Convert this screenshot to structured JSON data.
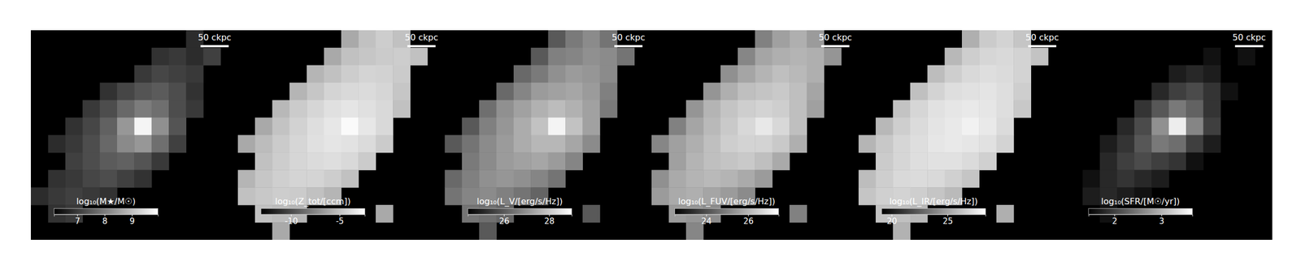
{
  "chart_data": [
    {
      "type": "heatmap",
      "scale_bar": "50 ckpc",
      "colorbar_label": "log₁₀(M★/M☉)",
      "colorbar_range": [
        6.15,
        9.95
      ],
      "colorbar_ticks": [
        7,
        8,
        9
      ],
      "cells": [
        [
          null,
          null,
          null,
          null,
          null,
          null,
          null,
          null,
          null,
          6.8,
          null,
          null
        ],
        [
          null,
          null,
          null,
          null,
          null,
          null,
          null,
          6.9,
          7.0,
          6.8,
          7.1,
          null
        ],
        [
          null,
          null,
          null,
          null,
          null,
          null,
          7.0,
          7.2,
          7.1,
          7.0,
          null,
          null
        ],
        [
          null,
          null,
          null,
          null,
          6.9,
          7.2,
          7.4,
          7.5,
          7.3,
          6.9,
          null,
          null
        ],
        [
          null,
          null,
          null,
          7.0,
          7.3,
          7.7,
          8.0,
          7.8,
          7.3,
          7.0,
          null,
          null
        ],
        [
          null,
          null,
          6.9,
          7.2,
          7.6,
          8.4,
          9.8,
          8.3,
          7.4,
          null,
          null,
          null
        ],
        [
          null,
          6.8,
          7.0,
          7.3,
          7.7,
          8.2,
          8.4,
          7.8,
          7.1,
          null,
          null,
          null
        ],
        [
          null,
          null,
          7.1,
          7.3,
          7.5,
          7.6,
          7.4,
          7.0,
          null,
          null,
          null,
          null
        ],
        [
          null,
          6.9,
          7.0,
          7.2,
          7.3,
          7.1,
          6.9,
          null,
          null,
          null,
          null,
          null
        ],
        [
          6.8,
          7.0,
          7.1,
          7.0,
          6.9,
          null,
          null,
          null,
          null,
          null,
          null,
          null
        ],
        [
          null,
          6.9,
          7.0,
          null,
          null,
          null,
          null,
          null,
          null,
          null,
          null,
          null
        ],
        [
          null,
          null,
          null,
          null,
          null,
          null,
          null,
          null,
          null,
          null,
          null,
          null
        ]
      ]
    },
    {
      "type": "heatmap",
      "scale_bar": "50 ckpc",
      "colorbar_label": "log₁₀(Z_tot/[ccm])",
      "colorbar_range": [
        -13.1,
        -2.4
      ],
      "colorbar_ticks": [
        -10,
        -5
      ],
      "cells": [
        [
          null,
          null,
          null,
          null,
          null,
          null,
          -6,
          -5,
          -4.5,
          -5,
          null,
          null
        ],
        [
          null,
          null,
          null,
          null,
          null,
          -6,
          -5,
          -4.8,
          -4.6,
          -4.5,
          -5,
          null
        ],
        [
          null,
          null,
          null,
          null,
          -5.5,
          -5,
          -4.5,
          -4.2,
          -4.3,
          -4.6,
          null,
          null
        ],
        [
          null,
          null,
          null,
          -5.5,
          -4.8,
          -4.2,
          -4.0,
          -3.9,
          -4.1,
          -4.8,
          null,
          null
        ],
        [
          null,
          null,
          -5.4,
          -4.6,
          -4.1,
          -3.7,
          -3.5,
          -3.7,
          -4.0,
          -5,
          null,
          null
        ],
        [
          null,
          -6,
          -4.9,
          -4.3,
          -3.8,
          -3.4,
          -2.6,
          -3.4,
          -4,
          null,
          null,
          null
        ],
        [
          -6,
          -5.2,
          -4.6,
          -4.1,
          -3.7,
          -3.5,
          -3.6,
          -3.9,
          -4.6,
          null,
          null,
          null
        ],
        [
          null,
          -5,
          -4.5,
          -4.1,
          -3.9,
          -3.8,
          -4.0,
          -4.6,
          null,
          null,
          null,
          null
        ],
        [
          -5.5,
          -4.8,
          -4.4,
          -4.2,
          -4.2,
          -4.5,
          -5,
          null,
          null,
          null,
          null,
          null
        ],
        [
          -5,
          -4.7,
          -4.5,
          -4.6,
          -5,
          -5.5,
          null,
          null,
          null,
          null,
          null,
          null
        ],
        [
          null,
          -5,
          -5.2,
          -5.5,
          null,
          null,
          null,
          null,
          -6,
          null,
          null,
          null
        ],
        [
          null,
          null,
          -6,
          null,
          null,
          null,
          null,
          null,
          null,
          null,
          null,
          null
        ]
      ]
    },
    {
      "type": "heatmap",
      "scale_bar": "50 ckpc",
      "colorbar_label": "log₁₀(L_V/[erg/s/Hz])",
      "colorbar_range": [
        24.4,
        29.0
      ],
      "colorbar_ticks": [
        26,
        28
      ],
      "cells": [
        [
          null,
          null,
          null,
          null,
          null,
          null,
          26.0,
          26.6,
          26.9,
          26.5,
          null,
          null
        ],
        [
          null,
          null,
          null,
          null,
          null,
          26.0,
          26.7,
          26.8,
          27.0,
          26.9,
          26.5,
          null
        ],
        [
          null,
          null,
          null,
          null,
          26.3,
          26.6,
          27.0,
          27.2,
          27.1,
          26.9,
          null,
          null
        ],
        [
          null,
          null,
          null,
          26.3,
          26.8,
          27.2,
          27.3,
          27.4,
          27.2,
          26.7,
          null,
          null
        ],
        [
          null,
          null,
          26.4,
          27.0,
          27.3,
          27.6,
          27.8,
          27.6,
          27.3,
          26.6,
          null,
          null
        ],
        [
          null,
          26.0,
          26.7,
          27.1,
          27.5,
          27.9,
          28.8,
          27.9,
          27.3,
          null,
          null,
          null
        ],
        [
          26.0,
          26.5,
          26.9,
          27.2,
          27.5,
          27.7,
          27.7,
          27.4,
          26.9,
          null,
          null,
          null
        ],
        [
          null,
          26.6,
          26.9,
          27.2,
          27.3,
          27.4,
          27.2,
          26.8,
          null,
          null,
          null,
          null
        ],
        [
          26.3,
          26.7,
          27.0,
          27.1,
          27.0,
          26.8,
          26.5,
          null,
          null,
          null,
          null,
          null
        ],
        [
          26.5,
          26.8,
          26.9,
          26.7,
          26.5,
          26.2,
          null,
          null,
          null,
          null,
          null,
          null
        ],
        [
          null,
          26.5,
          26.4,
          26.2,
          null,
          null,
          null,
          null,
          26.0,
          null,
          null,
          null
        ],
        [
          null,
          null,
          26.0,
          null,
          null,
          null,
          null,
          null,
          null,
          null,
          null,
          null
        ]
      ]
    },
    {
      "type": "heatmap",
      "scale_bar": "50 ckpc",
      "colorbar_label": "log₁₀(L_FUV/[erg/s/Hz])",
      "colorbar_range": [
        22.5,
        27.45
      ],
      "colorbar_ticks": [
        24,
        26
      ],
      "cells": [
        [
          null,
          null,
          null,
          null,
          null,
          null,
          25.0,
          25.6,
          25.9,
          25.5,
          null,
          null
        ],
        [
          null,
          null,
          null,
          null,
          null,
          25.1,
          25.7,
          25.9,
          26.0,
          25.9,
          25.4,
          null
        ],
        [
          null,
          null,
          null,
          null,
          25.3,
          25.7,
          26.0,
          26.2,
          26.1,
          25.9,
          null,
          null
        ],
        [
          null,
          null,
          null,
          25.4,
          25.9,
          26.2,
          26.3,
          26.4,
          26.2,
          25.7,
          null,
          null
        ],
        [
          null,
          null,
          25.4,
          26.0,
          26.3,
          26.5,
          26.6,
          26.5,
          26.2,
          25.6,
          null,
          null
        ],
        [
          null,
          25.0,
          25.7,
          26.1,
          26.4,
          26.7,
          27.0,
          26.7,
          26.2,
          null,
          null,
          null
        ],
        [
          25.1,
          25.6,
          25.9,
          26.2,
          26.5,
          26.6,
          26.6,
          26.4,
          25.9,
          null,
          null,
          null
        ],
        [
          null,
          25.6,
          26.0,
          26.2,
          26.3,
          26.4,
          26.2,
          25.8,
          null,
          null,
          null,
          null
        ],
        [
          25.3,
          25.8,
          26.0,
          26.1,
          26.0,
          25.8,
          25.5,
          null,
          null,
          null,
          null,
          null
        ],
        [
          25.5,
          25.8,
          25.9,
          25.7,
          25.5,
          25.2,
          null,
          null,
          null,
          null,
          null,
          null
        ],
        [
          null,
          25.5,
          25.4,
          25.2,
          null,
          null,
          null,
          null,
          25.0,
          null,
          null,
          null
        ],
        [
          null,
          null,
          25.1,
          null,
          null,
          null,
          null,
          null,
          null,
          null,
          null,
          null
        ]
      ]
    },
    {
      "type": "heatmap",
      "scale_bar": "50 ckpc",
      "colorbar_label": "log₁₀(L_IR/[erg/s/Hz])",
      "colorbar_range": [
        19.1,
        28.4
      ],
      "colorbar_ticks": [
        20,
        25
      ],
      "cells": [
        [
          null,
          null,
          null,
          null,
          null,
          null,
          25.5,
          26.5,
          26.8,
          26.3,
          null,
          null
        ],
        [
          null,
          null,
          null,
          null,
          null,
          25.8,
          26.6,
          26.9,
          27.0,
          26.8,
          26.2,
          null
        ],
        [
          null,
          null,
          null,
          null,
          26.0,
          26.6,
          27.0,
          27.2,
          27.1,
          26.8,
          null,
          null
        ],
        [
          null,
          null,
          null,
          26.1,
          26.8,
          27.2,
          27.3,
          27.4,
          27.2,
          26.6,
          null,
          null
        ],
        [
          null,
          null,
          26.2,
          26.9,
          27.3,
          27.5,
          27.6,
          27.5,
          27.2,
          26.4,
          null,
          null
        ],
        [
          null,
          25.8,
          26.6,
          27.1,
          27.4,
          27.6,
          27.9,
          27.6,
          27.1,
          null,
          null,
          null
        ],
        [
          25.7,
          26.4,
          26.9,
          27.2,
          27.5,
          27.6,
          27.5,
          27.3,
          26.8,
          null,
          null,
          null
        ],
        [
          null,
          26.5,
          26.9,
          27.2,
          27.3,
          27.3,
          27.1,
          26.7,
          null,
          null,
          null,
          null
        ],
        [
          26.0,
          26.6,
          27.0,
          27.1,
          27.0,
          26.7,
          26.3,
          null,
          null,
          null,
          null,
          null
        ],
        [
          26.3,
          26.7,
          26.8,
          26.6,
          26.3,
          25.9,
          null,
          null,
          null,
          null,
          null,
          null
        ],
        [
          null,
          26.2,
          26.1,
          25.8,
          null,
          null,
          null,
          null,
          25.5,
          null,
          null,
          null
        ],
        [
          null,
          null,
          25.6,
          null,
          null,
          null,
          null,
          null,
          null,
          null,
          null,
          null
        ]
      ]
    },
    {
      "type": "heatmap",
      "scale_bar": "50 ckpc",
      "colorbar_label": "log₁₀(SFR/[M☉/yr])",
      "colorbar_range": [
        1.45,
        3.66
      ],
      "colorbar_ticks": [
        2,
        3
      ],
      "cells": [
        [
          null,
          null,
          null,
          null,
          null,
          null,
          null,
          null,
          null,
          null,
          null,
          null
        ],
        [
          null,
          null,
          null,
          null,
          null,
          null,
          null,
          null,
          1.6,
          null,
          1.6,
          null
        ],
        [
          null,
          null,
          null,
          null,
          null,
          null,
          1.7,
          1.8,
          1.7,
          null,
          null,
          null
        ],
        [
          null,
          null,
          null,
          null,
          null,
          1.8,
          2.0,
          2.1,
          1.9,
          1.6,
          null,
          null
        ],
        [
          null,
          null,
          null,
          null,
          1.9,
          2.2,
          2.5,
          2.3,
          1.9,
          null,
          null,
          null
        ],
        [
          null,
          null,
          null,
          1.8,
          2.1,
          2.7,
          3.5,
          2.6,
          2.0,
          null,
          null,
          null
        ],
        [
          null,
          null,
          1.7,
          1.9,
          2.2,
          2.5,
          2.4,
          2.0,
          1.7,
          null,
          null,
          null
        ],
        [
          null,
          null,
          1.8,
          2.0,
          2.1,
          2.0,
          1.9,
          1.6,
          null,
          null,
          null,
          null
        ],
        [
          null,
          1.6,
          1.8,
          1.9,
          1.8,
          1.7,
          null,
          null,
          null,
          null,
          null,
          null
        ],
        [
          null,
          1.7,
          1.8,
          1.7,
          1.6,
          null,
          null,
          null,
          null,
          null,
          null,
          null
        ],
        [
          null,
          null,
          1.6,
          null,
          null,
          null,
          null,
          null,
          null,
          null,
          null,
          null
        ],
        [
          null,
          null,
          null,
          null,
          null,
          null,
          null,
          null,
          null,
          null,
          null,
          null
        ]
      ]
    }
  ]
}
